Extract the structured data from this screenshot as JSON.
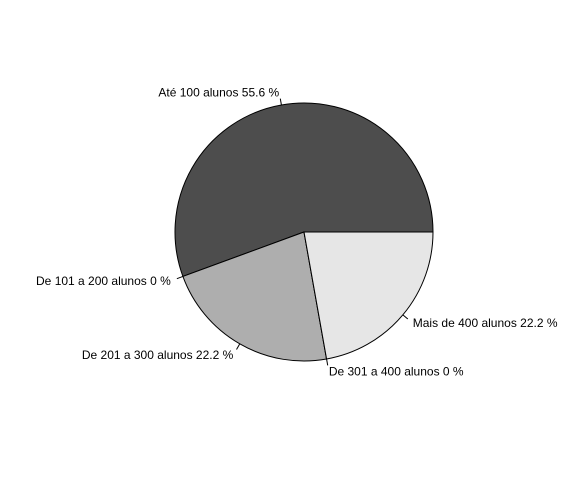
{
  "chart_data": {
    "type": "pie",
    "title": "",
    "start_angle_degrees": 0,
    "direction": "counterclockwise",
    "slices": [
      {
        "label": "Até 100 alunos 55.6 %",
        "category": "Até 100 alunos",
        "value": 55.6,
        "color": "#4d4d4d"
      },
      {
        "label": "De 101 a 200 alunos 0 %",
        "category": "De 101 a 200 alunos",
        "value": 0,
        "color": "#8c8c8c"
      },
      {
        "label": "De 201 a 300 alunos 22.2 %",
        "category": "De 201 a 300 alunos",
        "value": 22.2,
        "color": "#aeaeae"
      },
      {
        "label": "De 301 a 400 alunos 0 %",
        "category": "De 301 a 400 alunos",
        "value": 0,
        "color": "#cccccc"
      },
      {
        "label": "Mais de 400 alunos 22.2 %",
        "category": "Mais de 400 alunos",
        "value": 22.2,
        "color": "#e6e6e6"
      }
    ],
    "slice_border_color": "#000000",
    "label_color": "#000000"
  }
}
